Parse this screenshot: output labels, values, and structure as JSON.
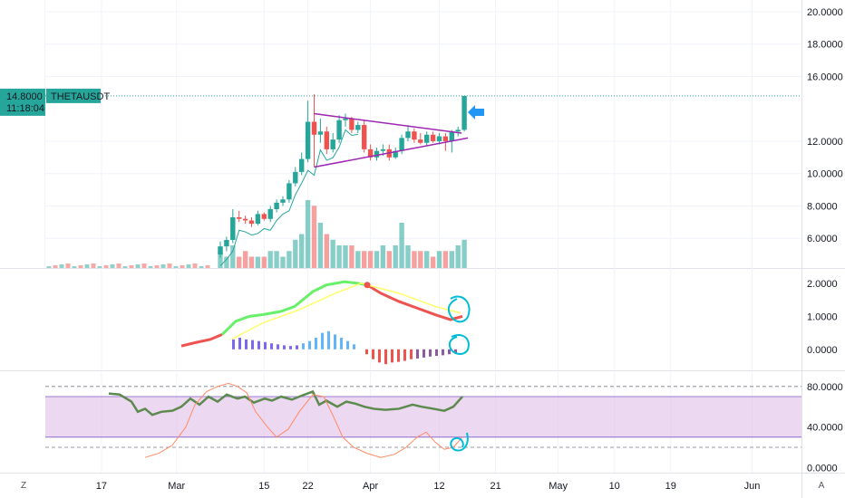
{
  "symbol": "THETAUSDT",
  "last_price": "14.8000",
  "countdown": "11:18:04",
  "price_axis": [
    "20.0000",
    "18.0000",
    "16.0000",
    "12.0000",
    "10.0000",
    "8.0000",
    "6.0000"
  ],
  "time_axis": [
    "17",
    "Mar",
    "15",
    "22",
    "Apr",
    "12",
    "21",
    "May",
    "10",
    "19",
    "Jun"
  ],
  "indicator1_axis": [
    "2.0000",
    "1.0000",
    "0.0000"
  ],
  "indicator2_axis": [
    "80.0000",
    "40.0000",
    "0.0000"
  ],
  "scale_buttons": {
    "left": "Z",
    "right": "A"
  },
  "colors": {
    "up": "#26a69a",
    "down": "#ef5350",
    "triangle": "#9c27b0",
    "arrow": "#2196f3",
    "circle": "#00bcd4",
    "rsi_band": "#e1bee7",
    "rsi_line": "#4caf50",
    "stoch_line": "#ff8a65",
    "mfi_green": "#69f069",
    "mfi_red": "#ef5350",
    "signal": "#ffff66"
  },
  "chart_data": [
    {
      "type": "candlestick",
      "series_name": "THETAUSDT",
      "x": [
        "Mar 8",
        "Mar 9",
        "Mar 10",
        "Mar 11",
        "Mar 12",
        "Mar 13",
        "Mar 14",
        "Mar 15",
        "Mar 16",
        "Mar 17",
        "Mar 18",
        "Mar 19",
        "Mar 20",
        "Mar 21",
        "Mar 22",
        "Mar 23",
        "Mar 24",
        "Mar 25",
        "Mar 26",
        "Mar 27",
        "Mar 28",
        "Mar 29",
        "Mar 30",
        "Mar 31",
        "Apr 1",
        "Apr 2",
        "Apr 3",
        "Apr 4",
        "Apr 5",
        "Apr 6",
        "Apr 7",
        "Apr 8",
        "Apr 9",
        "Apr 10",
        "Apr 11",
        "Apr 12",
        "Apr 13",
        "Apr 14",
        "Apr 15",
        "Apr 16"
      ],
      "open": [
        5.0,
        5.5,
        5.9,
        7.3,
        7.2,
        7.1,
        6.9,
        7.5,
        7.2,
        7.8,
        8.2,
        8.4,
        9.4,
        10.1,
        10.9,
        13.2,
        12.4,
        12.6,
        11.5,
        12.1,
        13.3,
        13.4,
        12.7,
        13.0,
        11.5,
        11.0,
        11.4,
        11.5,
        11.0,
        11.4,
        12.2,
        12.6,
        12.1,
        11.9,
        12.4,
        12.0,
        12.3,
        12.0,
        12.6,
        12.7
      ],
      "close": [
        5.5,
        5.9,
        7.3,
        7.2,
        7.1,
        6.9,
        7.5,
        7.2,
        7.8,
        8.2,
        8.4,
        9.4,
        10.1,
        10.9,
        13.2,
        12.4,
        12.6,
        11.5,
        12.1,
        13.3,
        13.4,
        12.7,
        13.0,
        11.5,
        11.0,
        11.4,
        11.5,
        11.0,
        11.4,
        12.2,
        12.6,
        12.1,
        11.9,
        12.4,
        12.0,
        12.3,
        12.0,
        12.6,
        12.7,
        14.8
      ],
      "high": [
        5.8,
        6.1,
        7.8,
        7.7,
        7.4,
        7.3,
        7.7,
        7.6,
        8.0,
        8.4,
        8.6,
        9.6,
        10.4,
        11.3,
        14.5,
        14.9,
        13.4,
        12.9,
        12.5,
        13.6,
        13.7,
        13.5,
        13.2,
        13.3,
        11.8,
        11.6,
        11.8,
        11.8,
        11.6,
        12.4,
        13.0,
        12.8,
        12.5,
        12.6,
        12.6,
        12.5,
        12.5,
        12.7,
        12.9,
        14.8
      ],
      "low": [
        4.8,
        5.2,
        5.7,
        7.0,
        6.9,
        6.7,
        6.8,
        7.1,
        7.0,
        7.6,
        8.0,
        8.2,
        9.2,
        9.9,
        10.7,
        10.4,
        11.9,
        11.2,
        11.3,
        11.9,
        12.9,
        12.5,
        12.5,
        11.3,
        10.8,
        10.8,
        11.1,
        10.8,
        10.9,
        11.2,
        12.0,
        11.9,
        11.8,
        11.7,
        11.9,
        11.8,
        11.4,
        11.3,
        12.3,
        12.6
      ],
      "volume": [
        3,
        2,
        4,
        2,
        3,
        2,
        2,
        2,
        3,
        3,
        2,
        3,
        5,
        6,
        12,
        11,
        8,
        6,
        5,
        4,
        4,
        4,
        3,
        3,
        3,
        3,
        4,
        3,
        4,
        8,
        4,
        3,
        3,
        3,
        2,
        3,
        3,
        3,
        4,
        5
      ],
      "ylim": [
        4.5,
        20.5
      ],
      "last_price": 14.8
    },
    {
      "type": "line",
      "series_name": "indicator-1",
      "ylim": [
        -0.5,
        2.3
      ]
    },
    {
      "type": "line",
      "series_name": "indicator-2",
      "ylim": [
        -5,
        95
      ],
      "levels": [
        80,
        20
      ]
    }
  ]
}
